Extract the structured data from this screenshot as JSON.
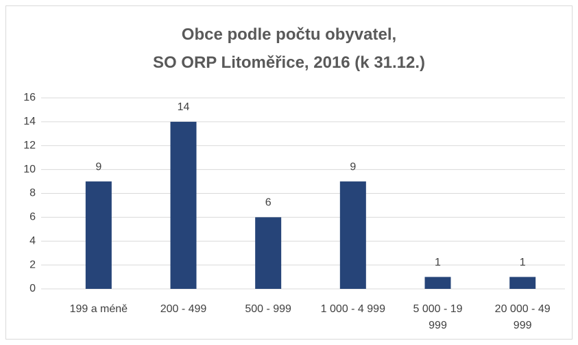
{
  "chart_data": {
    "type": "bar",
    "title": "Obce podle počtu obyvatel,\nSO ORP Litoměřice, 2016 (k 31.12.)",
    "categories": [
      "199 a méně",
      "200 - 499",
      "500 - 999",
      "1 000 - 4 999",
      "5 000 - 19 999",
      "20 000 - 49 999"
    ],
    "values": [
      9,
      14,
      6,
      9,
      1,
      1
    ],
    "color": "#264478",
    "ylim": [
      0,
      16
    ],
    "yticks": [
      0,
      2,
      4,
      6,
      8,
      10,
      12,
      14,
      16
    ],
    "grid": true,
    "data_labels": true
  }
}
